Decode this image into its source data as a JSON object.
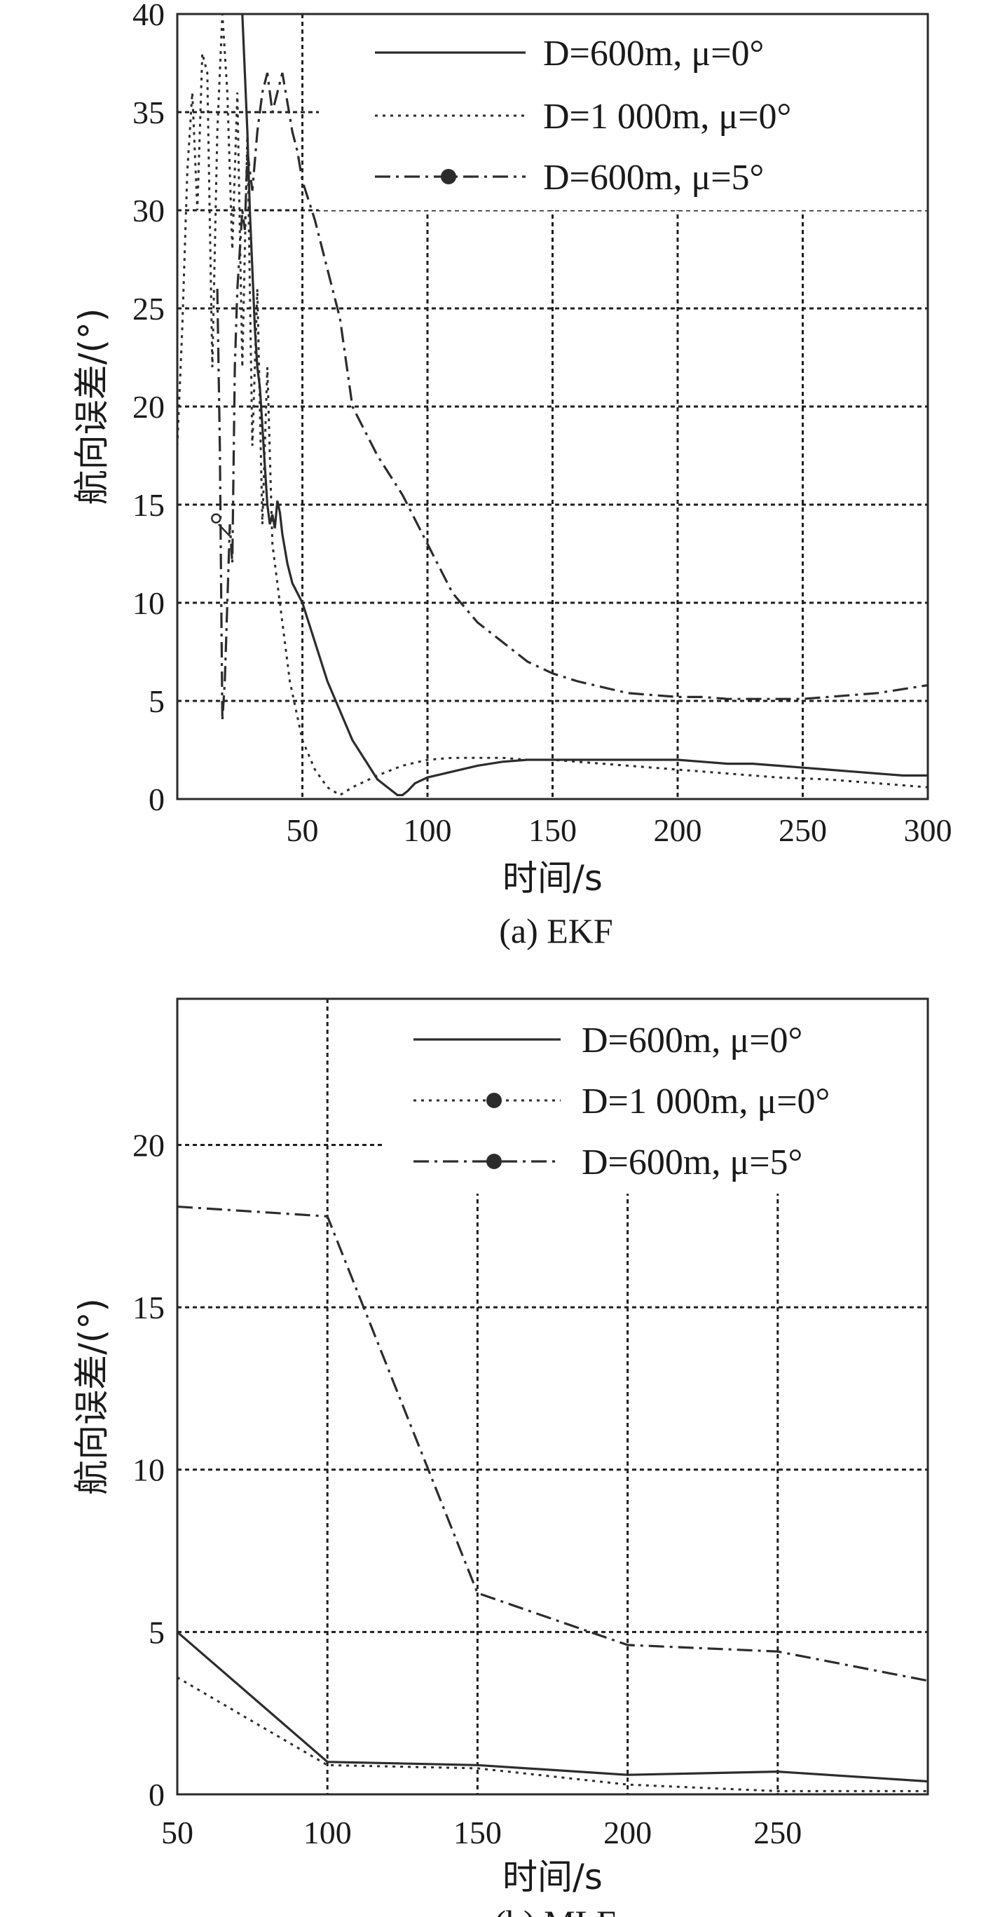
{
  "chart_data": [
    {
      "type": "line",
      "caption": "(a) EKF",
      "xlabel": "时间/s",
      "ylabel": "航向误差/(°)",
      "xlim": [
        0,
        300
      ],
      "ylim": [
        0,
        40
      ],
      "xticks": [
        50,
        100,
        150,
        200,
        250,
        300
      ],
      "yticks": [
        0,
        5,
        10,
        15,
        20,
        25,
        30,
        35,
        40
      ],
      "grid": true,
      "legend_position": "top-right",
      "series": [
        {
          "name": "D=600m, μ=0°",
          "style": "solid",
          "x": [
            26,
            28,
            29,
            30,
            31,
            32,
            33,
            34,
            35,
            36,
            37,
            38,
            39,
            40,
            41,
            42,
            44,
            46,
            50,
            55,
            60,
            65,
            70,
            75,
            80,
            85,
            88,
            90,
            92,
            95,
            100,
            110,
            120,
            130,
            140,
            150,
            160,
            170,
            180,
            190,
            200,
            210,
            220,
            230,
            240,
            250,
            260,
            270,
            280,
            290,
            300
          ],
          "y": [
            40,
            34,
            30,
            27,
            24,
            22,
            21,
            19,
            17,
            15,
            14,
            14.5,
            13.8,
            15.2,
            14.6,
            13.5,
            12,
            11,
            10,
            8,
            6,
            4.5,
            3,
            2,
            1,
            0.5,
            0.2,
            0.2,
            0.4,
            0.8,
            1.1,
            1.4,
            1.7,
            1.9,
            2,
            2,
            2,
            2,
            2,
            2,
            2,
            1.9,
            1.8,
            1.8,
            1.7,
            1.6,
            1.5,
            1.4,
            1.3,
            1.2,
            1.2
          ]
        },
        {
          "name": "D=1 000m, μ=0°",
          "style": "dotted",
          "x": [
            0,
            2,
            4,
            6,
            8,
            10,
            12,
            14,
            16,
            18,
            20,
            22,
            24,
            26,
            28,
            30,
            32,
            34,
            36,
            38,
            40,
            45,
            50,
            55,
            60,
            65,
            70,
            80,
            90,
            100,
            110,
            120,
            130,
            140,
            150,
            160,
            170,
            180,
            190,
            200,
            220,
            240,
            260,
            280,
            300
          ],
          "y": [
            18,
            24,
            32,
            36,
            30,
            38,
            37,
            22,
            34,
            40,
            36,
            28,
            36,
            22,
            34,
            18,
            26,
            14,
            22,
            13,
            11,
            6,
            3,
            1.5,
            0.6,
            0.2,
            0.6,
            1.2,
            1.7,
            2,
            2.1,
            2.1,
            2.1,
            2,
            2,
            1.9,
            1.8,
            1.7,
            1.6,
            1.5,
            1.3,
            1.1,
            1,
            0.8,
            0.6
          ]
        },
        {
          "name": "D=600m, μ=5°",
          "style": "dash-dot",
          "x": [
            16,
            17,
            18,
            19,
            20,
            21,
            22,
            23,
            24,
            25,
            26,
            27,
            28,
            30,
            32,
            34,
            36,
            38,
            40,
            42,
            44,
            46,
            48,
            50,
            55,
            60,
            65,
            70,
            80,
            90,
            100,
            110,
            120,
            130,
            140,
            150,
            160,
            170,
            180,
            190,
            200,
            210,
            220,
            230,
            240,
            250,
            260,
            270,
            280,
            290,
            300
          ],
          "y": [
            26,
            18,
            4,
            6,
            10,
            14,
            12,
            22,
            26,
            28,
            30,
            29,
            33,
            31,
            34,
            36,
            37,
            35,
            36,
            37,
            35.5,
            34,
            33,
            31.5,
            29.5,
            27,
            24.5,
            20,
            17.5,
            15.5,
            13,
            10.5,
            9,
            8,
            7,
            6.4,
            6,
            5.7,
            5.4,
            5.3,
            5.2,
            5.2,
            5.1,
            5.1,
            5.1,
            5.1,
            5.2,
            5.3,
            5.4,
            5.6,
            5.8
          ]
        }
      ]
    },
    {
      "type": "line",
      "caption": "(b) MLE",
      "xlabel": "时间/s",
      "ylabel": "航向误差/(°)",
      "xlim": [
        50,
        300
      ],
      "ylim": [
        0,
        24.5
      ],
      "xticks": [
        50,
        100,
        150,
        200,
        250
      ],
      "yticks": [
        0,
        5,
        10,
        15,
        20
      ],
      "grid": true,
      "legend_position": "top-right",
      "series": [
        {
          "name": "D=600m, μ=0°",
          "style": "solid",
          "x": [
            50,
            100,
            150,
            200,
            250,
            300
          ],
          "y": [
            5,
            1,
            0.9,
            0.6,
            0.7,
            0.4
          ]
        },
        {
          "name": "D=1 000m, μ=0°",
          "style": "dotted",
          "x": [
            50,
            100,
            150,
            200,
            250,
            300
          ],
          "y": [
            3.6,
            0.9,
            0.8,
            0.3,
            0.1,
            0.1
          ]
        },
        {
          "name": "D=600m, μ=5°",
          "style": "dash-dot",
          "x": [
            50,
            100,
            150,
            200,
            250,
            300
          ],
          "y": [
            18.1,
            17.8,
            6.2,
            4.6,
            4.4,
            3.5
          ]
        }
      ]
    }
  ]
}
